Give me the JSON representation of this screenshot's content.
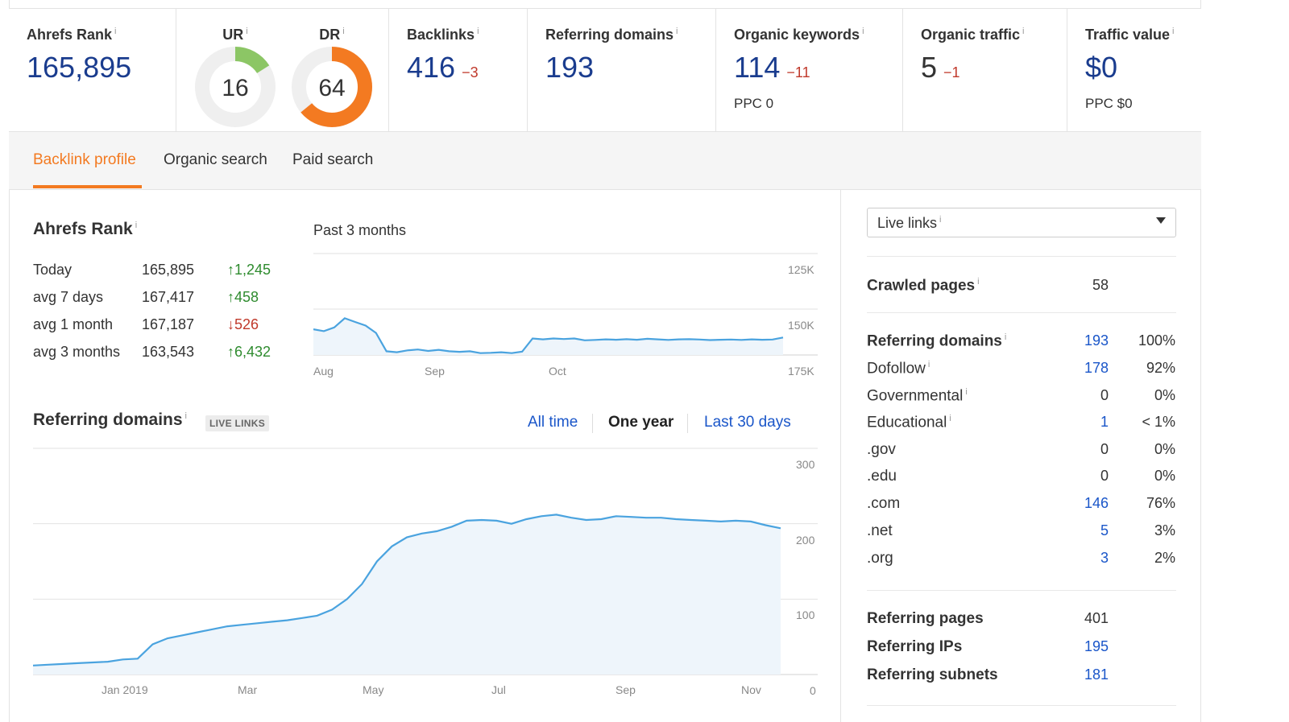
{
  "metrics": {
    "ahrefs_rank": {
      "label": "Ahrefs Rank",
      "value": "165,895"
    },
    "ur": {
      "label": "UR",
      "value": "16",
      "score": 16,
      "color": "#8cc665"
    },
    "dr": {
      "label": "DR",
      "value": "64",
      "score": 64,
      "color": "#f37a21"
    },
    "backlinks": {
      "label": "Backlinks",
      "value": "416",
      "delta": "−3"
    },
    "referring_domains": {
      "label": "Referring domains",
      "value": "193"
    },
    "organic_keywords": {
      "label": "Organic keywords",
      "value": "114",
      "delta": "−11",
      "sub": "PPC 0"
    },
    "organic_traffic": {
      "label": "Organic traffic",
      "value": "5",
      "delta": "−1"
    },
    "traffic_value": {
      "label": "Traffic value",
      "value": "$0",
      "sub": "PPC $0"
    }
  },
  "info_glyph": "i",
  "tabs": [
    "Backlink profile",
    "Organic search",
    "Paid search"
  ],
  "rank_section": {
    "title": "Ahrefs Rank",
    "rows": [
      {
        "label": "Today",
        "value": "165,895",
        "change": "↑1,245",
        "dir": "up"
      },
      {
        "label": "avg 7 days",
        "value": "167,417",
        "change": "↑458",
        "dir": "up"
      },
      {
        "label": "avg 1 month",
        "value": "167,187",
        "change": "↓526",
        "dir": "down"
      },
      {
        "label": "avg 3 months",
        "value": "163,543",
        "change": "↑6,432",
        "dir": "up"
      }
    ],
    "chart_caption": "Past 3 months"
  },
  "referring_section": {
    "title": "Referring domains",
    "badge": "LIVE LINKS",
    "ranges": [
      "All time",
      "One year",
      "Last 30 days"
    ],
    "selected_range": "One year"
  },
  "chart_data": [
    {
      "type": "line",
      "title": "",
      "x_tick_labels": [
        "Aug",
        "Sep",
        "Oct"
      ],
      "y_tick_labels": [
        "125K",
        "150K",
        "175K"
      ],
      "y_reversed": true,
      "ylim": [
        175000,
        110000
      ],
      "color": "#4aa3df",
      "grid": true,
      "y": [
        161000,
        162000,
        160000,
        155000,
        157000,
        159000,
        163000,
        173000,
        173500,
        172500,
        172000,
        172800,
        172200,
        173000,
        173300,
        173000,
        174000,
        173800,
        173500,
        174000,
        173200,
        166000,
        166500,
        166000,
        166300,
        166000,
        167000,
        166800,
        166500,
        166700,
        166400,
        166700,
        166200,
        166500,
        166800,
        166500,
        166400,
        166600,
        166900,
        166700,
        166600,
        166800,
        166500,
        166700,
        166600,
        165500
      ]
    },
    {
      "type": "area",
      "title": "",
      "x_tick_labels": [
        "Jan 2019",
        "Mar",
        "May",
        "Jul",
        "Sep",
        "Nov"
      ],
      "y_tick_labels": [
        "300",
        "200",
        "100",
        "0"
      ],
      "ylim": [
        0,
        300
      ],
      "color": "#4aa3df",
      "grid": true,
      "y": [
        12,
        13,
        14,
        15,
        16,
        17,
        20,
        21,
        40,
        48,
        52,
        56,
        60,
        64,
        66,
        68,
        70,
        72,
        75,
        78,
        86,
        100,
        120,
        150,
        170,
        182,
        187,
        190,
        196,
        204,
        205,
        204,
        200,
        206,
        210,
        212,
        208,
        205,
        206,
        210,
        209,
        208,
        208,
        206,
        205,
        204,
        203,
        204,
        203,
        198,
        194
      ]
    }
  ],
  "right_panel": {
    "select_label": "Live links",
    "crawled_pages": {
      "label": "Crawled pages",
      "value": "58"
    },
    "domain_stats": [
      {
        "label": "Referring domains",
        "value": "193",
        "pct": "100%",
        "bold": true,
        "info": true,
        "link": true
      },
      {
        "label": "Dofollow",
        "value": "178",
        "pct": "92%",
        "bold": false,
        "info": true,
        "link": true
      },
      {
        "label": "Governmental",
        "value": "0",
        "pct": "0%",
        "bold": false,
        "info": true,
        "link": false
      },
      {
        "label": "Educational",
        "value": "1",
        "pct": "< 1%",
        "bold": false,
        "info": true,
        "link": true
      },
      {
        "label": ".gov",
        "value": "0",
        "pct": "0%",
        "bold": false,
        "info": false,
        "link": false
      },
      {
        "label": ".edu",
        "value": "0",
        "pct": "0%",
        "bold": false,
        "info": false,
        "link": false
      },
      {
        "label": ".com",
        "value": "146",
        "pct": "76%",
        "bold": false,
        "info": false,
        "link": true
      },
      {
        "label": ".net",
        "value": "5",
        "pct": "3%",
        "bold": false,
        "info": false,
        "link": true
      },
      {
        "label": ".org",
        "value": "3",
        "pct": "2%",
        "bold": false,
        "info": false,
        "link": true
      }
    ],
    "page_stats": [
      {
        "label": "Referring pages",
        "value": "401",
        "link": false
      },
      {
        "label": "Referring IPs",
        "value": "195",
        "link": true
      },
      {
        "label": "Referring subnets",
        "value": "181",
        "link": true
      }
    ]
  }
}
